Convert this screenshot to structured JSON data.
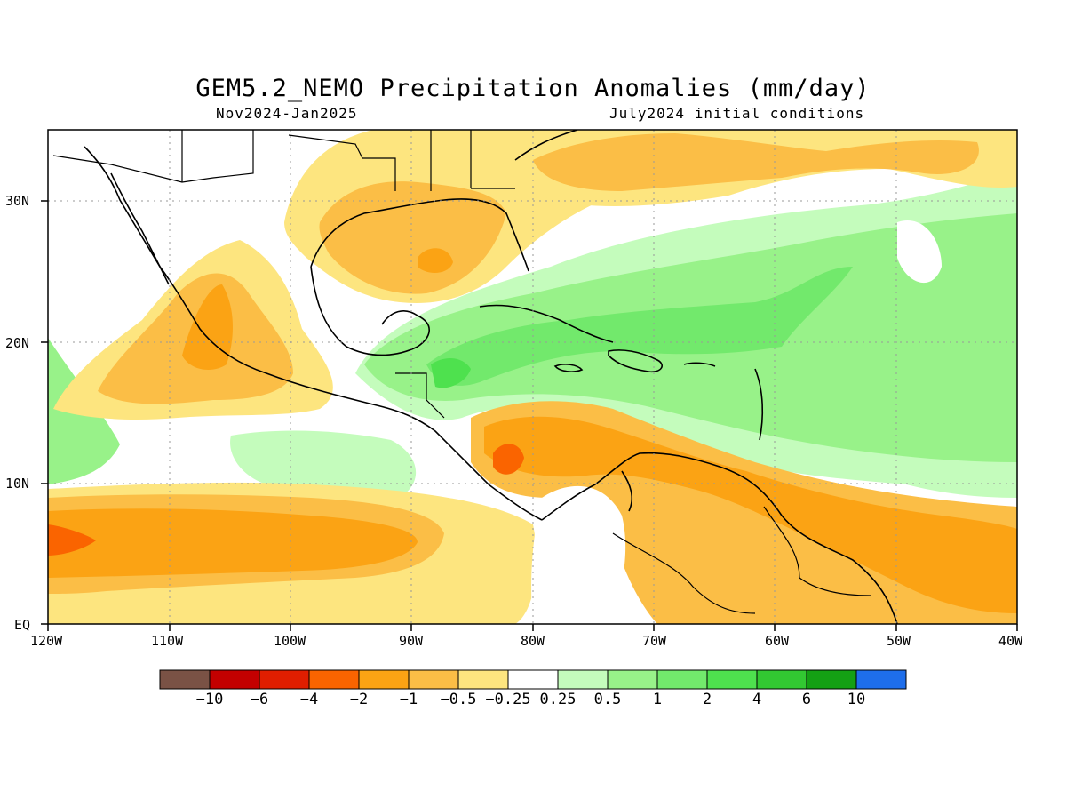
{
  "title": "GEM5.2_NEMO Precipitation Anomalies (mm/day)",
  "period": "Nov2024-Jan2025",
  "initial_conditions": "July2024 initial conditions",
  "lat_ticks": [
    "30N",
    "20N",
    "10N",
    "EQ"
  ],
  "lon_ticks": [
    "120W",
    "110W",
    "100W",
    "90W",
    "80W",
    "70W",
    "60W",
    "50W",
    "40W"
  ],
  "colorbar": {
    "colors": [
      "#7a5245",
      "#c30000",
      "#e01e00",
      "#fa6400",
      "#fba314",
      "#fbbe46",
      "#fde57f",
      "#ffffff",
      "#c4fcbc",
      "#98f289",
      "#72e96c",
      "#4ee14e",
      "#32c832",
      "#14a014",
      "#1e6eeb"
    ],
    "labels": [
      "-10",
      "-6",
      "-4",
      "-2",
      "-1",
      "-0.5",
      "-0.25",
      "0.25",
      "0.5",
      "1",
      "2",
      "4",
      "6",
      "10"
    ]
  }
}
